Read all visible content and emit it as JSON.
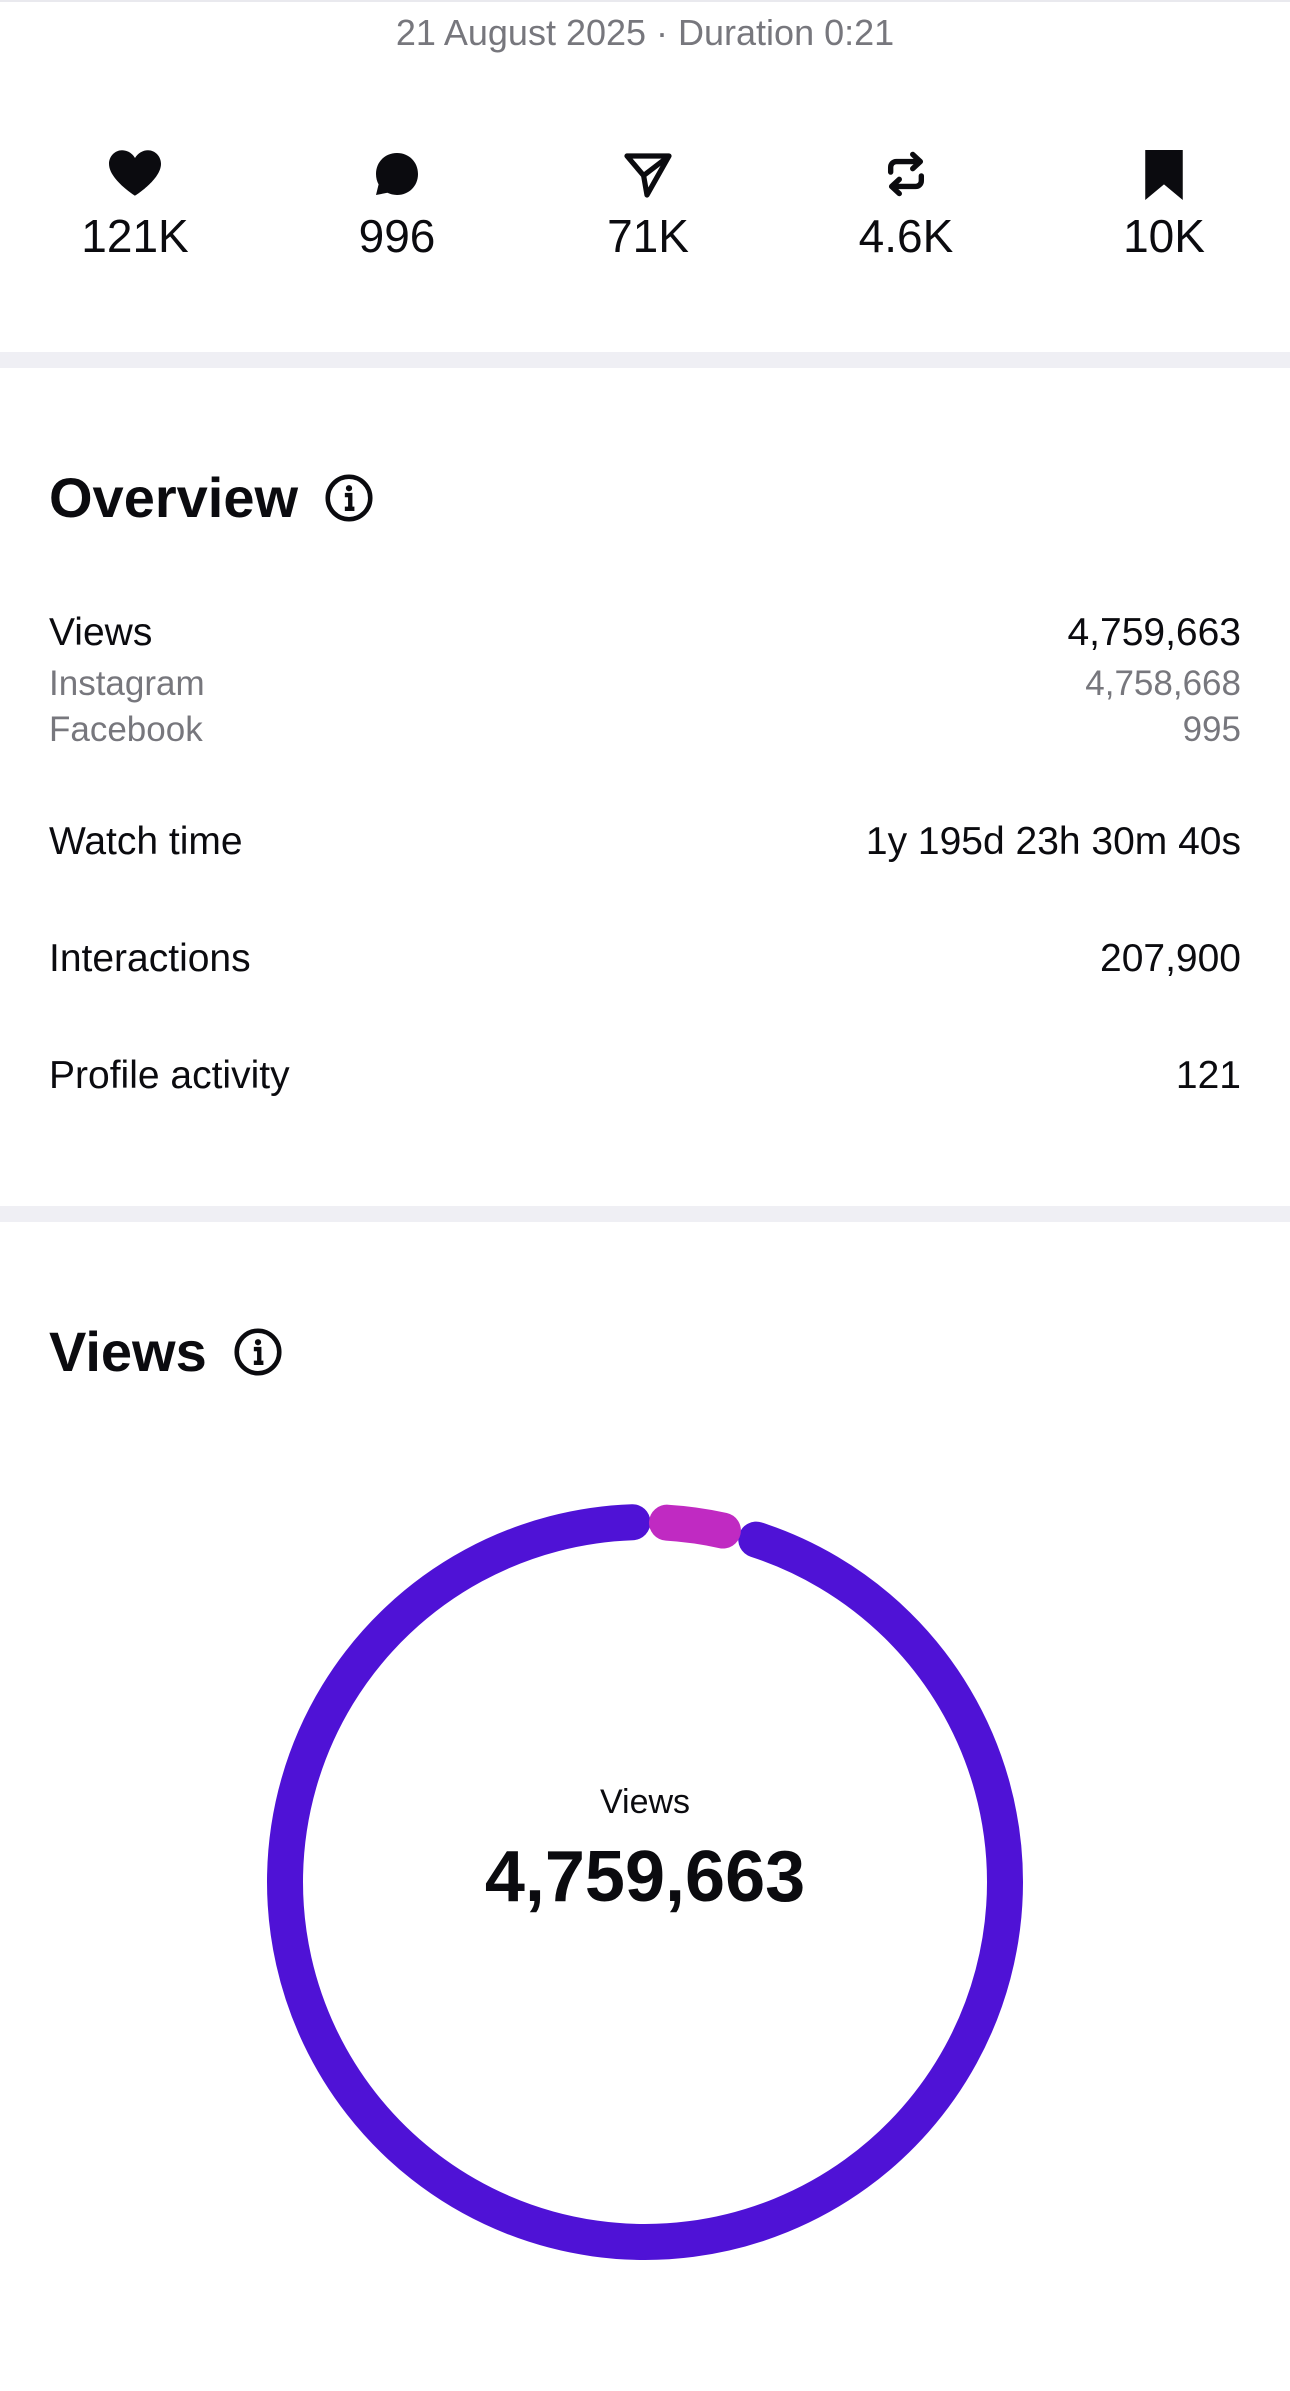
{
  "header": {
    "date_duration": "21 August 2025 · Duration 0:21"
  },
  "stats": [
    {
      "icon": "heart-icon",
      "value": "121K"
    },
    {
      "icon": "comment-icon",
      "value": "996"
    },
    {
      "icon": "share-icon",
      "value": "71K"
    },
    {
      "icon": "repost-icon",
      "value": "4.6K"
    },
    {
      "icon": "bookmark-icon",
      "value": "10K"
    }
  ],
  "overview": {
    "title": "Overview",
    "views_label": "Views",
    "views_value": "4,759,663",
    "instagram_label": "Instagram",
    "instagram_value": "4,758,668",
    "facebook_label": "Facebook",
    "facebook_value": "995",
    "watch_time_label": "Watch time",
    "watch_time_value": "1y 195d 23h 30m 40s",
    "interactions_label": "Interactions",
    "interactions_value": "207,900",
    "profile_activity_label": "Profile activity",
    "profile_activity_value": "121"
  },
  "views_section": {
    "title": "Views",
    "donut": {
      "center_label": "Views",
      "center_value": "4,759,663",
      "segments": [
        {
          "name": "Instagram",
          "value": 4758668,
          "color": "#4f12d6"
        },
        {
          "name": "Facebook",
          "value": 995,
          "color": "#c02ac2"
        }
      ]
    }
  },
  "colors": {
    "primary_text": "#0b0b0f",
    "secondary_text": "#77777d",
    "divider": "#efeff4",
    "instagram": "#4f12d6",
    "facebook": "#c02ac2"
  }
}
